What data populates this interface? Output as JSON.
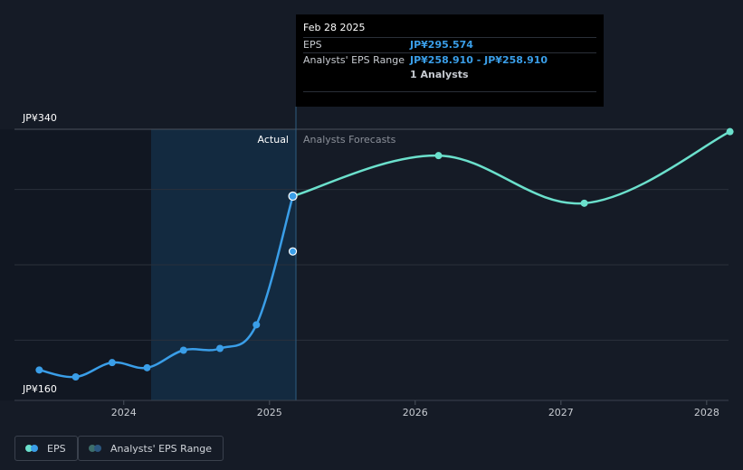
{
  "chart_data": {
    "type": "line",
    "x_axis": {
      "min": 2023.25,
      "max": 2028.15,
      "ticks": [
        2024,
        2025,
        2026,
        2027,
        2028
      ],
      "tick_labels": [
        "2024",
        "2025",
        "2026",
        "2027",
        "2028"
      ]
    },
    "y_axis": {
      "min": 160,
      "max": 340,
      "tick_values": [
        160,
        340
      ],
      "tick_labels": [
        "JP¥160",
        "JP¥340"
      ],
      "gridlines": [
        200,
        250,
        300,
        340
      ]
    },
    "sections": {
      "actual_label": "Actual",
      "forecast_label": "Analysts Forecasts",
      "divider_x": 2025.16,
      "highlight_start_x": 2024.16
    },
    "series": [
      {
        "name": "EPS",
        "color": "#3a9ee8",
        "points": [
          [
            2023.42,
            180.2
          ],
          [
            2023.67,
            175.6
          ],
          [
            2023.92,
            185.1
          ],
          [
            2024.16,
            181.7
          ],
          [
            2024.41,
            193.3
          ],
          [
            2024.66,
            194.5
          ],
          [
            2024.91,
            210.2
          ],
          [
            2025.16,
            295.6
          ]
        ]
      },
      {
        "name": "EPS forecast",
        "color": "#6be0cc",
        "points": [
          [
            2025.16,
            295.6
          ],
          [
            2026.16,
            322.5
          ],
          [
            2027.16,
            290.9
          ],
          [
            2028.16,
            338.4
          ]
        ]
      }
    ],
    "extra_points": [
      {
        "x": 2025.16,
        "y": 258.9,
        "color": "#3a9ee8"
      }
    ]
  },
  "tooltip": {
    "date": "Feb 28 2025",
    "rows": [
      {
        "label": "EPS",
        "value": "JP¥295.574"
      },
      {
        "label": "Analysts' EPS Range",
        "value": "JP¥258.910 - JP¥258.910"
      },
      {
        "label": "",
        "value": "1 Analysts"
      }
    ]
  },
  "legend": {
    "items": [
      {
        "label": "EPS",
        "colors": [
          "#6be0cc",
          "#3a9ee8"
        ]
      },
      {
        "label": "Analysts' EPS Range",
        "colors": [
          "#3d6e6c",
          "#2b5780"
        ]
      }
    ]
  }
}
